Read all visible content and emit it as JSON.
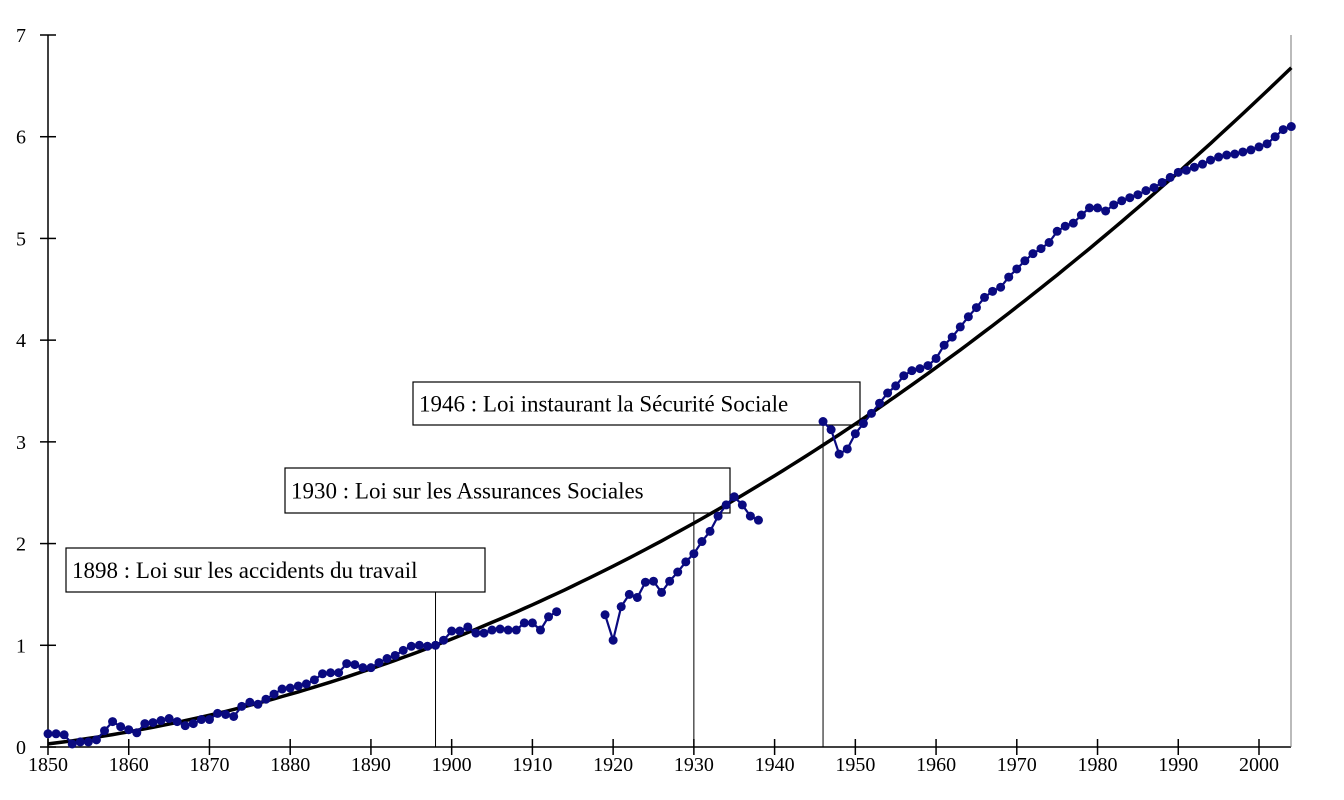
{
  "chart_data": {
    "type": "line",
    "title": "",
    "xlabel": "",
    "ylabel": "",
    "xlim": [
      1850,
      2004
    ],
    "ylim": [
      0,
      7
    ],
    "x_ticks": [
      1850,
      1860,
      1870,
      1880,
      1890,
      1900,
      1910,
      1920,
      1930,
      1940,
      1950,
      1960,
      1970,
      1980,
      1990,
      2000
    ],
    "y_ticks": [
      0,
      1,
      2,
      3,
      4,
      5,
      6,
      7
    ],
    "grid": false,
    "legend": "none",
    "series": [
      {
        "color": "#0a0a80",
        "marker": "circle",
        "segments": [
          {
            "x": [
              1850,
              1851,
              1852,
              1853,
              1854,
              1855,
              1856,
              1857,
              1858,
              1859,
              1860,
              1861,
              1862,
              1863,
              1864,
              1865,
              1866,
              1867,
              1868,
              1869,
              1870,
              1871,
              1872,
              1873,
              1874,
              1875,
              1876,
              1877,
              1878,
              1879,
              1880,
              1881,
              1882,
              1883,
              1884,
              1885,
              1886,
              1887,
              1888,
              1889,
              1890,
              1891,
              1892,
              1893,
              1894,
              1895,
              1896,
              1897,
              1898,
              1899,
              1900,
              1901,
              1902,
              1903,
              1904,
              1905,
              1906,
              1907,
              1908,
              1909,
              1910,
              1911,
              1912,
              1913
            ],
            "y": [
              0.13,
              0.13,
              0.12,
              0.03,
              0.05,
              0.05,
              0.07,
              0.16,
              0.25,
              0.2,
              0.17,
              0.14,
              0.23,
              0.24,
              0.26,
              0.28,
              0.25,
              0.21,
              0.23,
              0.27,
              0.27,
              0.33,
              0.32,
              0.3,
              0.4,
              0.44,
              0.42,
              0.47,
              0.52,
              0.57,
              0.58,
              0.6,
              0.62,
              0.66,
              0.72,
              0.73,
              0.73,
              0.82,
              0.81,
              0.78,
              0.78,
              0.83,
              0.87,
              0.9,
              0.95,
              0.99,
              1.0,
              0.99,
              1.0,
              1.05,
              1.14,
              1.14,
              1.18,
              1.12,
              1.12,
              1.15,
              1.16,
              1.15,
              1.15,
              1.22,
              1.22,
              1.15,
              1.28,
              1.33
            ]
          },
          {
            "x": [
              1919,
              1920,
              1921,
              1922,
              1923,
              1924,
              1925,
              1926,
              1927,
              1928,
              1929,
              1930,
              1931,
              1932,
              1933,
              1934,
              1935,
              1936,
              1937,
              1938
            ],
            "y": [
              1.3,
              1.05,
              1.38,
              1.5,
              1.47,
              1.62,
              1.63,
              1.52,
              1.63,
              1.72,
              1.82,
              1.9,
              2.02,
              2.12,
              2.27,
              2.38,
              2.46,
              2.38,
              2.27,
              2.23
            ]
          },
          {
            "x": [
              1946,
              1947,
              1948,
              1949,
              1950,
              1951,
              1952,
              1953,
              1954,
              1955,
              1956,
              1957,
              1958,
              1959,
              1960,
              1961,
              1962,
              1963,
              1964,
              1965,
              1966,
              1967,
              1968,
              1969,
              1970,
              1971,
              1972,
              1973,
              1974,
              1975,
              1976,
              1977,
              1978,
              1979,
              1980,
              1981,
              1982,
              1983,
              1984,
              1985,
              1986,
              1987,
              1988,
              1989,
              1990,
              1991,
              1992,
              1993,
              1994,
              1995,
              1996,
              1997,
              1998,
              1999,
              2000,
              2001,
              2002,
              2003,
              2004
            ],
            "y": [
              3.2,
              3.12,
              2.88,
              2.93,
              3.08,
              3.18,
              3.28,
              3.38,
              3.48,
              3.55,
              3.65,
              3.7,
              3.72,
              3.75,
              3.82,
              3.95,
              4.03,
              4.13,
              4.23,
              4.32,
              4.42,
              4.48,
              4.52,
              4.62,
              4.7,
              4.78,
              4.85,
              4.9,
              4.96,
              5.07,
              5.12,
              5.15,
              5.23,
              5.3,
              5.3,
              5.27,
              5.33,
              5.37,
              5.4,
              5.43,
              5.47,
              5.5,
              5.55,
              5.6,
              5.65,
              5.67,
              5.7,
              5.73,
              5.77,
              5.8,
              5.82,
              5.83,
              5.85,
              5.87,
              5.9,
              5.93,
              6.0,
              6.07,
              6.1
            ]
          }
        ]
      },
      {
        "color": "#000000",
        "style": "trend",
        "x": [
          1850,
          1860,
          1870,
          1880,
          1890,
          1900,
          1910,
          1920,
          1930,
          1940,
          1950,
          1960,
          1970,
          1980,
          1990,
          2000,
          2004
        ],
        "y": [
          0.03,
          0.15,
          0.31,
          0.52,
          0.77,
          1.06,
          1.39,
          1.75,
          2.2,
          2.66,
          3.2,
          3.73,
          4.33,
          4.97,
          5.65,
          6.38,
          6.68
        ]
      }
    ],
    "annotations": [
      {
        "text": "1898 : Loi sur les accidents du travail",
        "x": 1898
      },
      {
        "text": "1930 : Loi sur les Assurances Sociales",
        "x": 1930
      },
      {
        "text": "1946 : Loi instaurant la Sécurité Sociale",
        "x": 1946
      }
    ]
  }
}
